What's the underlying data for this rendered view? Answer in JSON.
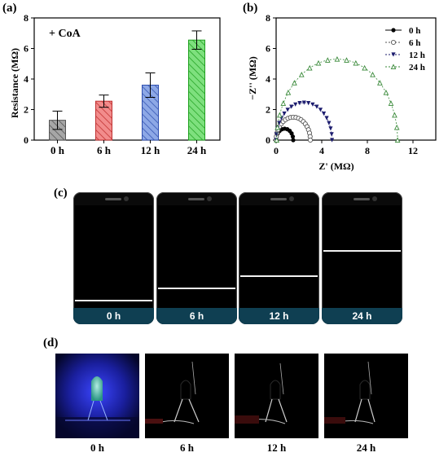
{
  "panels": {
    "a": "(a)",
    "b": "(b)",
    "c": "(c)",
    "d": "(d)"
  },
  "chart_data": [
    {
      "type": "bar",
      "annotation": "+ CoA",
      "ylabel": "Resistance (MΩ)",
      "xlabel": "",
      "categories": [
        "0 h",
        "6 h",
        "12 h",
        "24 h"
      ],
      "values": [
        1.3,
        2.55,
        3.6,
        6.55
      ],
      "errors": [
        0.6,
        0.4,
        0.8,
        0.6
      ],
      "colors": [
        "#a6a6a6",
        "#f28c8c",
        "#8da8e6",
        "#7ee07e"
      ],
      "edge_colors": [
        "#555555",
        "#c03030",
        "#3050b0",
        "#20a020"
      ],
      "ylim": [
        0,
        8
      ],
      "yticks": [
        0,
        2,
        4,
        6,
        8
      ]
    },
    {
      "type": "scatter",
      "xlabel": "Z' (MΩ)",
      "ylabel": "−Z'' (MΩ)",
      "xlim": [
        0,
        14
      ],
      "ylim": [
        0,
        8
      ],
      "xticks": [
        0,
        4,
        8,
        12
      ],
      "yticks": [
        0,
        2,
        4,
        6,
        8
      ],
      "legend_position": "top-right",
      "series": [
        {
          "name": "0 h",
          "center": 0.75,
          "radius": 0.75,
          "color": "#000000",
          "marker": "filled-circle"
        },
        {
          "name": "6 h",
          "center": 1.5,
          "radius": 1.5,
          "color": "#555555",
          "marker": "open-circle"
        },
        {
          "name": "12 h",
          "center": 2.45,
          "radius": 2.45,
          "color": "#1c1c6e",
          "marker": "filled-triangle-down"
        },
        {
          "name": "24 h",
          "center": 5.35,
          "radius": 5.3,
          "color": "#3a8a3a",
          "marker": "open-triangle-up"
        }
      ]
    }
  ],
  "phones": [
    {
      "label": "0 h",
      "level": 0.08
    },
    {
      "label": "6 h",
      "level": 0.2
    },
    {
      "label": "12 h",
      "level": 0.32
    },
    {
      "label": "24 h",
      "level": 0.56
    }
  ],
  "photos": [
    {
      "label": "0 h",
      "led_lit": true
    },
    {
      "label": "6 h",
      "led_lit": false
    },
    {
      "label": "12 h",
      "led_lit": false
    },
    {
      "label": "24 h",
      "led_lit": false
    }
  ]
}
